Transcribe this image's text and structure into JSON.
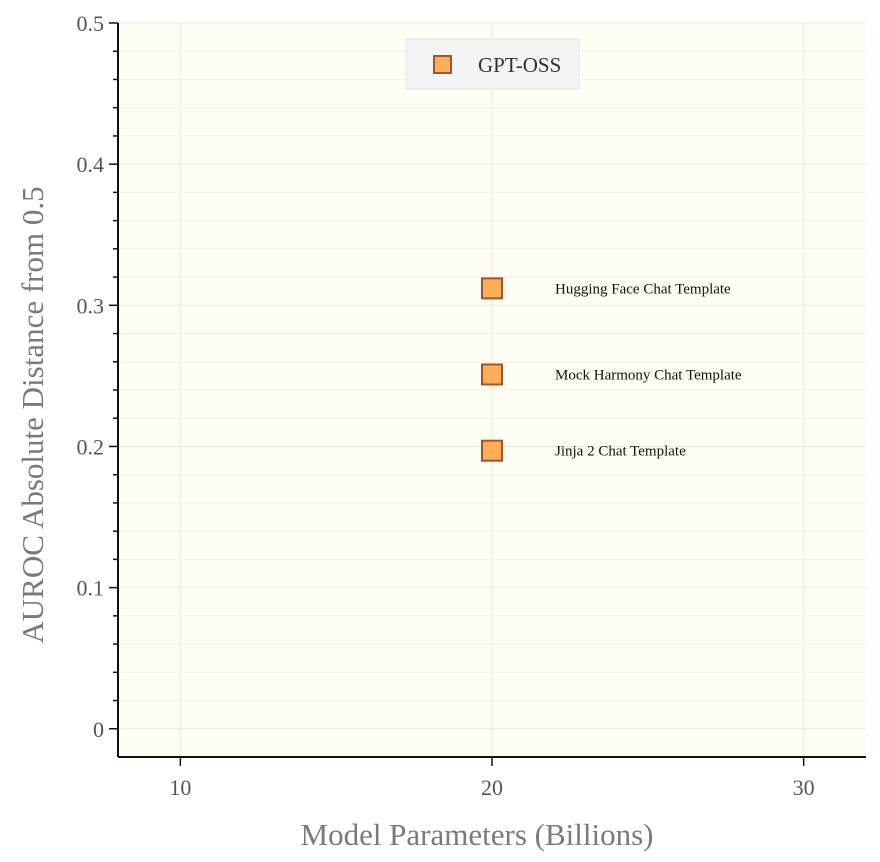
{
  "chart_data": {
    "type": "scatter",
    "title": "",
    "xlabel": "Model Parameters (Billions)",
    "ylabel": "AUROC Absolute Distance from 0.5",
    "xlim": [
      8,
      32
    ],
    "ylim": [
      -0.02,
      0.5
    ],
    "x_ticks": [
      10,
      20,
      30
    ],
    "y_ticks": [
      0,
      0.1,
      0.2,
      0.3,
      0.4,
      0.5
    ],
    "y_tick_labels": [
      "0",
      "0.1",
      "0.2",
      "0.3",
      "0.4",
      "0.5"
    ],
    "grid": true,
    "legend": {
      "position": "top-center",
      "entries": [
        "GPT-OSS"
      ]
    },
    "series": [
      {
        "name": "GPT-OSS",
        "marker": "square",
        "color": "#FFAE57",
        "edge_color": "#A0562A",
        "points": [
          {
            "x": 20,
            "y": 0.312,
            "label": "Hugging Face Chat Template"
          },
          {
            "x": 20,
            "y": 0.251,
            "label": "Mock Harmony Chat Template"
          },
          {
            "x": 20,
            "y": 0.197,
            "label": "Jinja 2 Chat Template"
          }
        ]
      }
    ],
    "colors": {
      "plot_background": "#FEFDF3",
      "grid_major": "#EBEBE3",
      "grid_minor": "#F5F3E6",
      "axis_line": "#111111",
      "legend_background": "#F4F4F4"
    }
  }
}
